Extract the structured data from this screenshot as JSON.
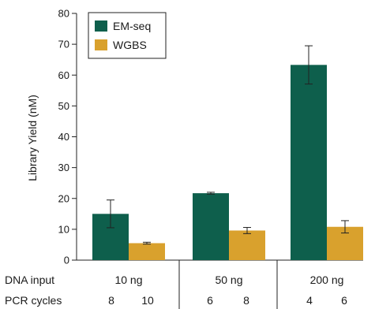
{
  "chart_data": {
    "type": "bar",
    "title": "",
    "xlabel": "",
    "ylabel": "Library Yield (nM)",
    "ylim": [
      0,
      80
    ],
    "yticks": [
      0,
      10,
      20,
      30,
      40,
      50,
      60,
      70,
      80
    ],
    "grid": false,
    "legend_position": "top-left",
    "groups": [
      {
        "dna_input": "10 ng",
        "pcr_cycles": [
          "8",
          "10"
        ]
      },
      {
        "dna_input": "50 ng",
        "pcr_cycles": [
          "6",
          "8"
        ]
      },
      {
        "dna_input": "200 ng",
        "pcr_cycles": [
          "4",
          "6"
        ]
      }
    ],
    "series": [
      {
        "name": "EM-seq",
        "color": "#0e5f4c",
        "values": [
          15.0,
          21.7,
          63.3
        ],
        "error": [
          4.5,
          0.3,
          6.2
        ]
      },
      {
        "name": "WGBS",
        "color": "#d9a12d",
        "values": [
          5.5,
          9.6,
          10.8
        ],
        "error": [
          0.3,
          1.0,
          2.0
        ]
      }
    ],
    "row_labels": {
      "dna_input": "DNA input",
      "pcr_cycles": "PCR cycles"
    }
  }
}
